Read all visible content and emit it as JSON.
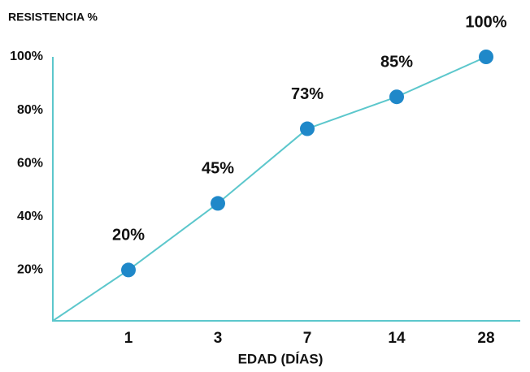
{
  "chart_data": {
    "type": "line",
    "y_label": "RESISTENCIA %",
    "x_label": "EDAD (DÍAS)",
    "categories": [
      "1",
      "3",
      "7",
      "14",
      "28"
    ],
    "series": [
      {
        "color": "#1f88c9",
        "line_color": "#5cc7cc",
        "values": [
          20,
          45,
          73,
          85,
          100
        ],
        "value_labels": [
          "20%",
          "45%",
          "73%",
          "85%",
          "100%"
        ]
      }
    ],
    "ylim": [
      0,
      100
    ],
    "yticks": [
      {
        "value": 20,
        "label": "20%"
      },
      {
        "value": 40,
        "label": "40%"
      },
      {
        "value": 60,
        "label": "60%"
      },
      {
        "value": 80,
        "label": "80%"
      },
      {
        "value": 100,
        "label": "100%"
      }
    ],
    "grid": false
  }
}
